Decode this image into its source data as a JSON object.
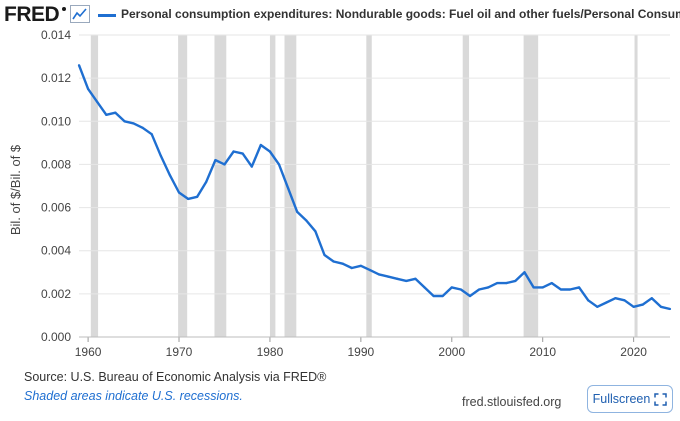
{
  "brand": {
    "logo_text": "FRED"
  },
  "header": {
    "series_title": "Personal consumption expenditures: Nondurable goods: Fuel oil and other fuels/Personal Consumption Expenditures"
  },
  "footer": {
    "source": "Source: U.S. Bureau of Economic Analysis via FRED®",
    "recession_note": "Shaded areas indicate U.S. recessions.",
    "site": "fred.stlouisfed.org",
    "fullscreen_label": "Fullscreen"
  },
  "colors": {
    "line": "#1f6fd1",
    "recession": "#d9d9d9",
    "grid": "#e6e6e6"
  },
  "icons": {
    "graph": "line-graph-icon",
    "fullscreen": "expand-icon"
  },
  "chart_data": {
    "type": "line",
    "title": "Personal consumption expenditures: Nondurable goods: Fuel oil and other fuels/Personal Consumption Expenditures",
    "xlabel": "",
    "ylabel": "Bil. of $/Bil. of $",
    "xlim": [
      1959,
      2024
    ],
    "ylim": [
      0,
      0.014
    ],
    "grid": "horizontal",
    "y_ticks": [
      "0.000",
      "0.002",
      "0.004",
      "0.006",
      "0.008",
      "0.010",
      "0.012",
      "0.014"
    ],
    "x_ticks": [
      "1960",
      "1970",
      "1980",
      "1990",
      "2000",
      "2010",
      "2020"
    ],
    "recessions": [
      [
        1960.3,
        1961.1
      ],
      [
        1969.9,
        1970.9
      ],
      [
        1973.9,
        1975.2
      ],
      [
        1980.0,
        1980.6
      ],
      [
        1981.6,
        1982.9
      ],
      [
        1990.6,
        1991.2
      ],
      [
        2001.2,
        2001.9
      ],
      [
        2007.9,
        2009.5
      ],
      [
        2020.1,
        2020.4
      ]
    ],
    "series": [
      {
        "values": [
          [
            1959,
            0.0126
          ],
          [
            1960,
            0.0115
          ],
          [
            1961,
            0.0109
          ],
          [
            1962,
            0.0103
          ],
          [
            1963,
            0.0104
          ],
          [
            1964,
            0.01
          ],
          [
            1965,
            0.0099
          ],
          [
            1966,
            0.0097
          ],
          [
            1967,
            0.0094
          ],
          [
            1968,
            0.0084
          ],
          [
            1969,
            0.0075
          ],
          [
            1970,
            0.0067
          ],
          [
            1971,
            0.0064
          ],
          [
            1972,
            0.0065
          ],
          [
            1973,
            0.0072
          ],
          [
            1974,
            0.0082
          ],
          [
            1975,
            0.008
          ],
          [
            1976,
            0.0086
          ],
          [
            1977,
            0.0085
          ],
          [
            1978,
            0.0079
          ],
          [
            1979,
            0.0089
          ],
          [
            1980,
            0.0086
          ],
          [
            1981,
            0.008
          ],
          [
            1982,
            0.0069
          ],
          [
            1983,
            0.0058
          ],
          [
            1984,
            0.0054
          ],
          [
            1985,
            0.0049
          ],
          [
            1986,
            0.0038
          ],
          [
            1987,
            0.0035
          ],
          [
            1988,
            0.0034
          ],
          [
            1989,
            0.0032
          ],
          [
            1990,
            0.0033
          ],
          [
            1991,
            0.0031
          ],
          [
            1992,
            0.0029
          ],
          [
            1993,
            0.0028
          ],
          [
            1994,
            0.0027
          ],
          [
            1995,
            0.0026
          ],
          [
            1996,
            0.0027
          ],
          [
            1997,
            0.0023
          ],
          [
            1998,
            0.0019
          ],
          [
            1999,
            0.0019
          ],
          [
            2000,
            0.0023
          ],
          [
            2001,
            0.0022
          ],
          [
            2002,
            0.0019
          ],
          [
            2003,
            0.0022
          ],
          [
            2004,
            0.0023
          ],
          [
            2005,
            0.0025
          ],
          [
            2006,
            0.0025
          ],
          [
            2007,
            0.0026
          ],
          [
            2008,
            0.003
          ],
          [
            2009,
            0.0023
          ],
          [
            2010,
            0.0023
          ],
          [
            2011,
            0.0025
          ],
          [
            2012,
            0.0022
          ],
          [
            2013,
            0.0022
          ],
          [
            2014,
            0.0023
          ],
          [
            2015,
            0.0017
          ],
          [
            2016,
            0.0014
          ],
          [
            2017,
            0.0016
          ],
          [
            2018,
            0.0018
          ],
          [
            2019,
            0.0017
          ],
          [
            2020,
            0.0014
          ],
          [
            2021,
            0.0015
          ],
          [
            2022,
            0.0018
          ],
          [
            2023,
            0.0014
          ],
          [
            2024,
            0.0013
          ]
        ]
      }
    ]
  }
}
